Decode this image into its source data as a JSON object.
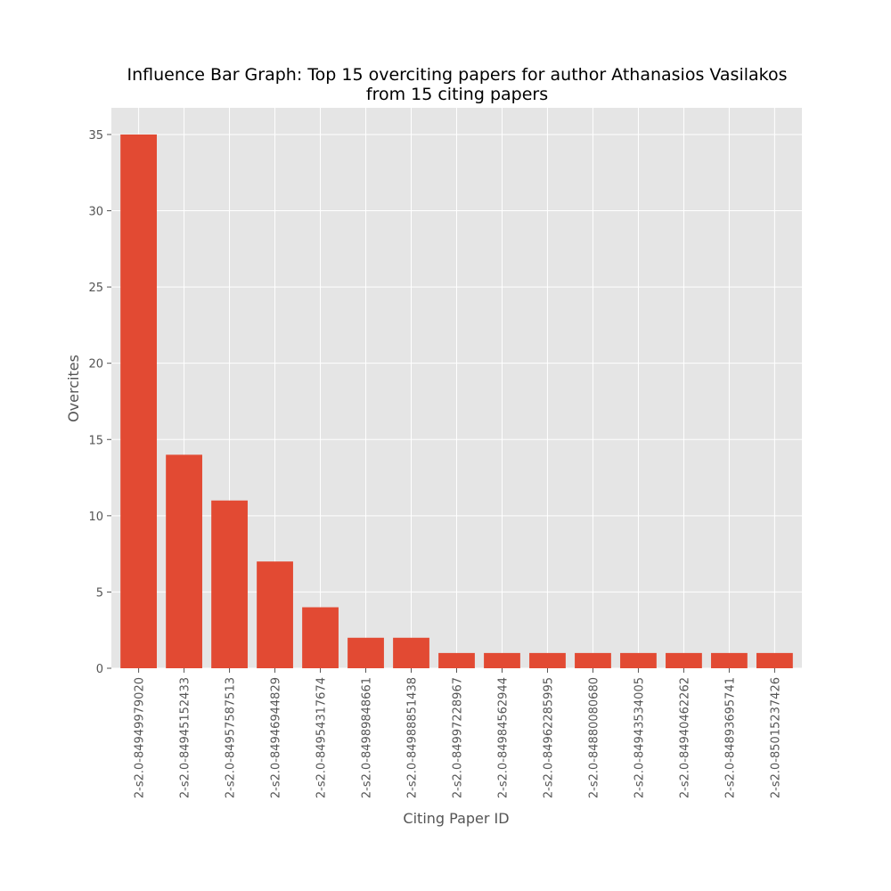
{
  "chart_data": {
    "type": "bar",
    "title_lines": [
      "Influence Bar Graph: Top 15 overciting papers for author Athanasios Vasilakos",
      "from 15 citing papers"
    ],
    "xlabel": "Citing Paper ID",
    "ylabel": "Overcites",
    "categories": [
      "2-s2.0-84949979020",
      "2-s2.0-84945152433",
      "2-s2.0-84957587513",
      "2-s2.0-84946944829",
      "2-s2.0-84954317674",
      "2-s2.0-84989848661",
      "2-s2.0-84988851438",
      "2-s2.0-84997228967",
      "2-s2.0-84984562944",
      "2-s2.0-84962285995",
      "2-s2.0-84880080680",
      "2-s2.0-84943534005",
      "2-s2.0-84940462262",
      "2-s2.0-84893695741",
      "2-s2.0-85015237426"
    ],
    "values": [
      35,
      14,
      11,
      7,
      4,
      2,
      2,
      1,
      1,
      1,
      1,
      1,
      1,
      1,
      1
    ],
    "ylim": [
      0,
      36.75
    ],
    "yticks": [
      0,
      5,
      10,
      15,
      20,
      25,
      30,
      35
    ],
    "grid": true,
    "colors": {
      "bar": "#e24a33",
      "plot_background": "#e5e5e5",
      "grid": "#ffffff",
      "tick_text": "#555555",
      "title_text": "#000000"
    }
  }
}
